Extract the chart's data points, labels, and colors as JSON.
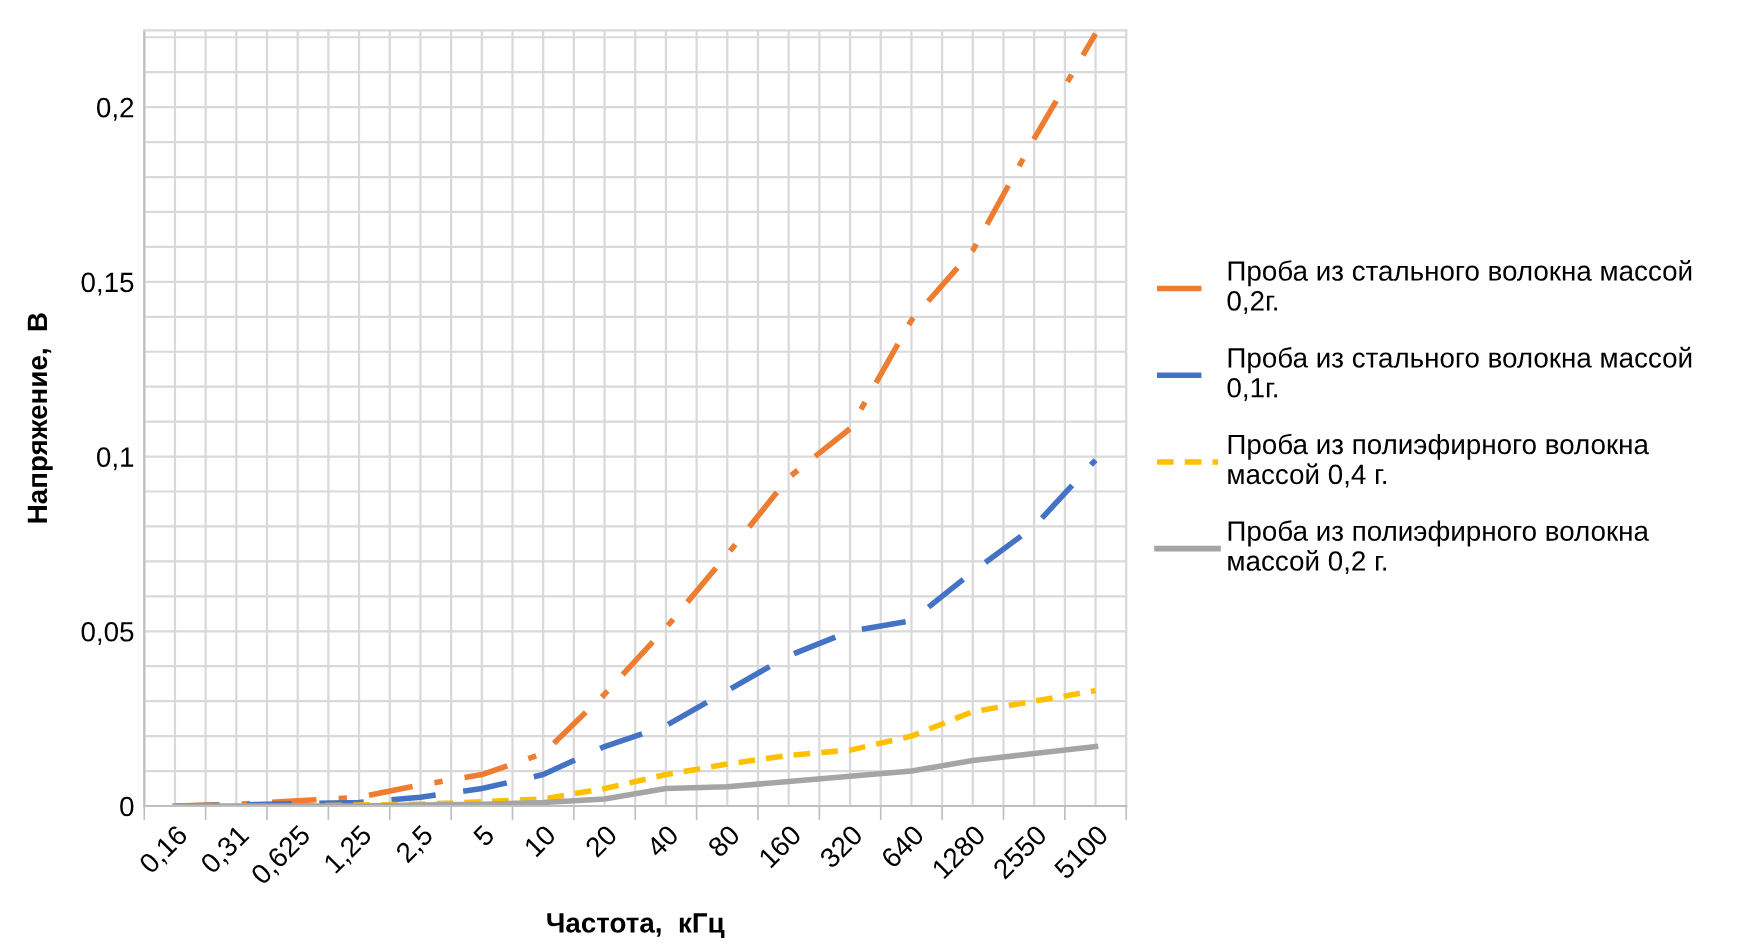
{
  "chart_data": {
    "type": "line",
    "xlabel": "Частота,  кГц",
    "ylabel": "Напряжение,  В",
    "categories": [
      "0,16",
      "0,31",
      "0,625",
      "1,25",
      "2,5",
      "5",
      "10",
      "20",
      "40",
      "80",
      "160",
      "320",
      "640",
      "1280",
      "2550",
      "5100"
    ],
    "series": [
      {
        "name": "Проба из стального волокна массой\n0,2г.",
        "color": "#ed7d31",
        "line_style": "dashdot",
        "values": [
          0,
          0.0005,
          0.0015,
          0.0025,
          0.006,
          0.009,
          0.015,
          0.032,
          0.051,
          0.072,
          0.094,
          0.108,
          0.139,
          0.159,
          0.191,
          0.221
        ]
      },
      {
        "name": "Проба из стального волокна массой\n0,1г.",
        "color": "#4472c4",
        "line_style": "dashed",
        "values": [
          0,
          0.0003,
          0.0007,
          0.001,
          0.0025,
          0.005,
          0.009,
          0.017,
          0.023,
          0.033,
          0.043,
          0.05,
          0.053,
          0.067,
          0.08,
          0.099
        ]
      },
      {
        "name": "Проба из полиэфирного волокна\nмассой 0,4 г.",
        "color": "#ffc000",
        "line_style": "dotted",
        "values": [
          null,
          null,
          0,
          0.0003,
          0.0005,
          0.0012,
          0.002,
          0.005,
          0.009,
          0.012,
          0.0145,
          0.016,
          0.02,
          0.027,
          0.03,
          0.033
        ]
      },
      {
        "name": "Проба из полиэфирного волокна\nмассой 0,2 г.",
        "color": "#a5a5a5",
        "line_style": "solid",
        "values": [
          0,
          0,
          0,
          0,
          0.0003,
          0.0005,
          0.001,
          0.002,
          0.005,
          0.0055,
          0.007,
          0.0085,
          0.01,
          0.013,
          0.015,
          0.017
        ]
      }
    ],
    "ylim": [
      0,
      0.222
    ],
    "yticks": [
      0,
      {
        "value": 0.01,
        "label": null
      },
      {
        "value": 0.02,
        "label": null
      },
      {
        "value": 0.03,
        "label": null
      },
      {
        "value": 0.04,
        "label": null
      },
      {
        "value": 0.05,
        "label": "0,05"
      },
      {
        "value": 0.06,
        "label": null
      },
      {
        "value": 0.07,
        "label": null
      },
      {
        "value": 0.08,
        "label": null
      },
      {
        "value": 0.09,
        "label": null
      },
      {
        "value": 0.1,
        "label": "0,1"
      },
      {
        "value": 0.11,
        "label": null
      },
      {
        "value": 0.12,
        "label": null
      },
      {
        "value": 0.13,
        "label": null
      },
      {
        "value": 0.14,
        "label": null
      },
      {
        "value": 0.15,
        "label": "0,15"
      },
      {
        "value": 0.16,
        "label": null
      },
      {
        "value": 0.17,
        "label": null
      },
      {
        "value": 0.18,
        "label": null
      },
      {
        "value": 0.19,
        "label": null
      },
      {
        "value": 0.2,
        "label": "0,2"
      },
      {
        "value": 0.21,
        "label": null
      },
      {
        "value": 0.22,
        "label": null
      }
    ],
    "grid": true,
    "legend": "right",
    "marker": "none"
  }
}
